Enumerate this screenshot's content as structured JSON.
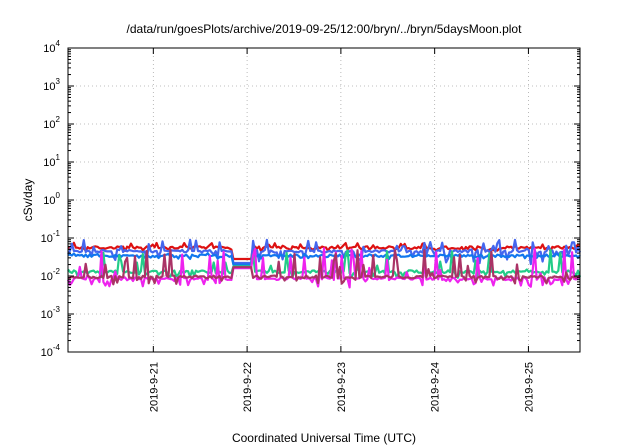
{
  "chart_data": {
    "type": "line",
    "title": "/data/run/goesPlots/archive/2019-09-25/12:00/bryn/../bryn/5daysMoon.plot",
    "xlabel": "Coordinated Universal Time (UTC)",
    "ylabel": "cSv/day",
    "yscale": "log",
    "ylim": [
      0.0001,
      10000
    ],
    "xlim": [
      20.09,
      25.55
    ],
    "grid": true,
    "y_ticks": [
      {
        "value": 0.0001,
        "base": "10",
        "exp": "-4"
      },
      {
        "value": 0.001,
        "base": "10",
        "exp": "-3"
      },
      {
        "value": 0.01,
        "base": "10",
        "exp": "-2"
      },
      {
        "value": 0.1,
        "base": "10",
        "exp": "-1"
      },
      {
        "value": 1,
        "base": "10",
        "exp": "0"
      },
      {
        "value": 10,
        "base": "10",
        "exp": "1"
      },
      {
        "value": 100,
        "base": "10",
        "exp": "2"
      },
      {
        "value": 1000,
        "base": "10",
        "exp": "3"
      },
      {
        "value": 10000,
        "base": "10",
        "exp": "4"
      }
    ],
    "x_ticks": [
      {
        "value": 21,
        "label": "2019-9-21"
      },
      {
        "value": 22,
        "label": "2019-9-22"
      },
      {
        "value": 23,
        "label": "2019-9-23"
      },
      {
        "value": 24,
        "label": "2019-9-24"
      },
      {
        "value": 25,
        "label": "2019-9-25"
      }
    ],
    "series": [
      {
        "color": "#dd1111",
        "base": 0.056,
        "dip_floor": 0.045,
        "spike_max": 0.075,
        "seg_base": [
          [
            21.85,
            22.05,
            0.028
          ]
        ]
      },
      {
        "color": "#4466ee",
        "base": 0.045,
        "dip_floor": 0.02,
        "spike_max": 0.09,
        "seg_base": [
          [
            21.85,
            22.05,
            0.022
          ]
        ]
      },
      {
        "color": "#1177ee",
        "base": 0.034,
        "dip_floor": 0.028,
        "spike_max": 0.04,
        "seg_base": [
          [
            21.85,
            22.05,
            0.02
          ]
        ]
      },
      {
        "color": "#22cc88",
        "base": 0.013,
        "dip_floor": 0.009,
        "spike_max": 0.05,
        "seg_base": [
          [
            21.85,
            22.05,
            0.018
          ]
        ]
      },
      {
        "color": "#ee22ee",
        "base": 0.0085,
        "dip_floor": 0.005,
        "spike_max": 0.055,
        "seg_base": [
          [
            21.85,
            22.05,
            0.016
          ]
        ]
      },
      {
        "color": "#aa3366",
        "base": 0.0095,
        "dip_floor": 0.006,
        "spike_max": 0.05,
        "seg_base": [
          [
            21.85,
            22.05,
            0.017
          ]
        ]
      }
    ]
  }
}
